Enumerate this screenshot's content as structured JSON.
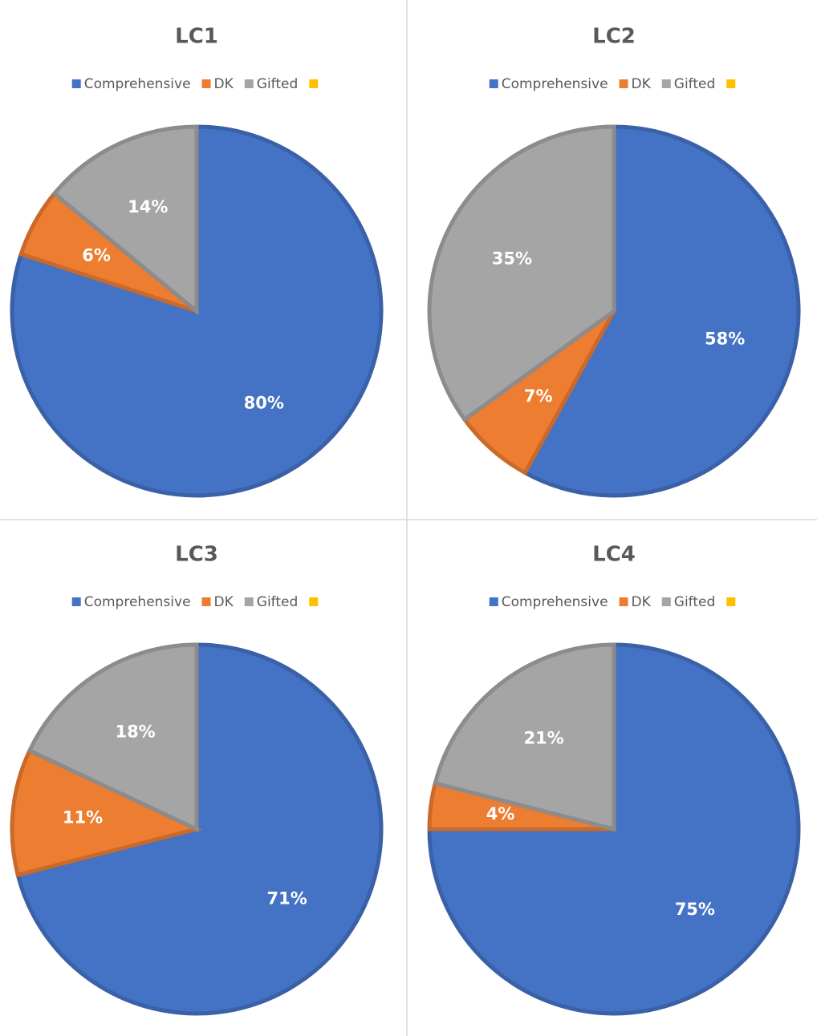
{
  "chart_data": [
    {
      "type": "pie",
      "title": "LC1",
      "categories": [
        "Comprehensive",
        "DK",
        "Gifted",
        null
      ],
      "values": [
        80,
        6,
        14,
        0
      ],
      "value_labels": [
        "80%",
        "6%",
        "14%",
        null
      ],
      "colors": [
        "#4472c4",
        "#ed7d31",
        "#a5a5a5",
        "#ffc000"
      ],
      "legend": "top"
    },
    {
      "type": "pie",
      "title": "LC2",
      "categories": [
        "Comprehensive",
        "DK",
        "Gifted",
        null
      ],
      "values": [
        58,
        7,
        35,
        0
      ],
      "value_labels": [
        "58%",
        "7%",
        "35%",
        null
      ],
      "colors": [
        "#4472c4",
        "#ed7d31",
        "#a5a5a5",
        "#ffc000"
      ],
      "legend": "top"
    },
    {
      "type": "pie",
      "title": "LC3",
      "categories": [
        "Comprehensive",
        "DK",
        "Gifted",
        null
      ],
      "values": [
        71,
        11,
        18,
        0
      ],
      "value_labels": [
        "71%",
        "11%",
        "18%",
        null
      ],
      "colors": [
        "#4472c4",
        "#ed7d31",
        "#a5a5a5",
        "#ffc000"
      ],
      "legend": "top"
    },
    {
      "type": "pie",
      "title": "LC4",
      "categories": [
        "Comprehensive",
        "DK",
        "Gifted",
        null
      ],
      "values": [
        75,
        4,
        21,
        0
      ],
      "value_labels": [
        "75%",
        "4%",
        "21%",
        null
      ],
      "colors": [
        "#4472c4",
        "#ed7d31",
        "#a5a5a5",
        "#ffc000"
      ],
      "legend": "top"
    }
  ]
}
